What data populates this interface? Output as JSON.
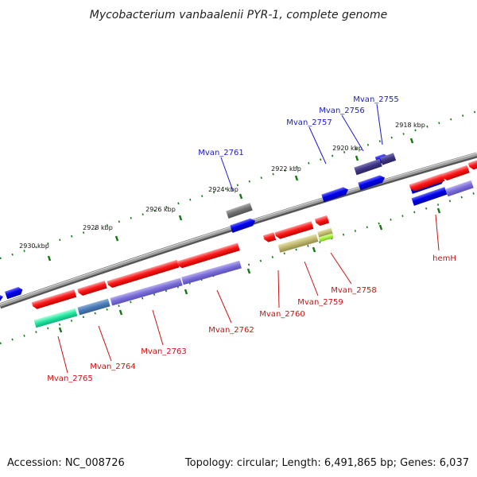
{
  "title": "Mycobacterium vanbaalenii PYR-1, complete genome",
  "footer": {
    "accession": "Accession: NC_008726",
    "summary": "Topology: circular; Length: 6,491,865 bp; Genes: 6,037"
  },
  "ticks": [
    "2918 kbp",
    "2920 kbp",
    "2922 kbp",
    "2924 kbp",
    "2926 kbp",
    "2928 kbp",
    "2930 kbp"
  ],
  "top_labels": [
    "Mvan_2755",
    "Mvan_2756",
    "Mvan_2757",
    "Mvan_2761"
  ],
  "bottom_labels": [
    "hemH",
    "Mvan_2758",
    "Mvan_2759",
    "Mvan_2760",
    "Mvan_2762",
    "Mvan_2763",
    "Mvan_2764",
    "Mvan_2765"
  ],
  "colors": {
    "forward_cds": "#0b0bf0",
    "reverse_cds": "#ee1111",
    "backbone": "#888888",
    "tick": "#117711"
  }
}
